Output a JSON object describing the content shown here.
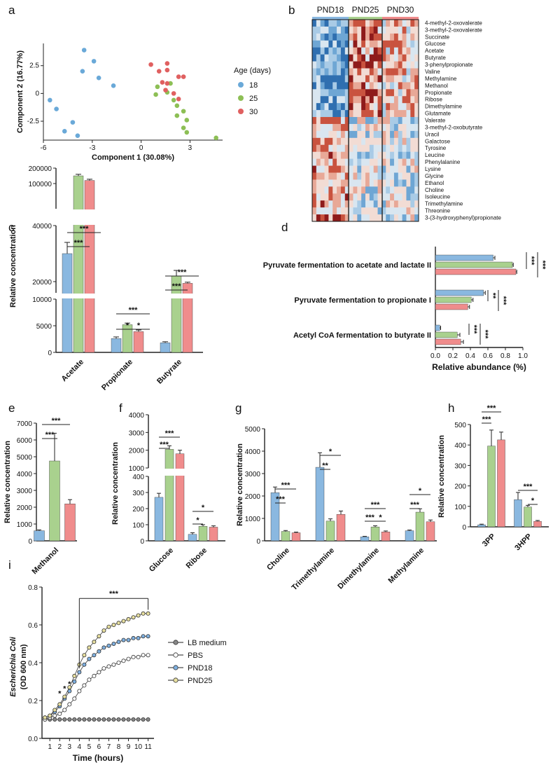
{
  "figure": {
    "colors": {
      "PND18": "#8ab8e0",
      "PND25": "#a9d18e",
      "PND30": "#f08c8c",
      "pca18": "#6aa9d8",
      "pca25": "#8dbf55",
      "pca30": "#e06060",
      "dark": "#222222"
    }
  },
  "chart_data": [
    {
      "panel": "a",
      "type": "scatter",
      "xlabel": "Component 1 (30.08%)",
      "ylabel": "Component 2 (16.77%)",
      "xlim": [
        -6,
        5
      ],
      "ylim": [
        -4.2,
        4.5
      ],
      "xticks": [
        -6,
        -3,
        0,
        3
      ],
      "yticks": [
        -2.5,
        0,
        2.5
      ],
      "legend_title": "Age (days)",
      "series": [
        {
          "name": "18",
          "color_key": "pca18",
          "points": [
            [
              -3.5,
              3.9
            ],
            [
              -2.9,
              2.9
            ],
            [
              -3.6,
              2.0
            ],
            [
              -2.6,
              1.4
            ],
            [
              -1.7,
              0.7
            ],
            [
              -5.6,
              -0.6
            ],
            [
              -5.2,
              -1.4
            ],
            [
              -4.2,
              -2.6
            ],
            [
              -4.7,
              -3.4
            ],
            [
              -3.9,
              -3.8
            ]
          ]
        },
        {
          "name": "25",
          "color_key": "pca25",
          "points": [
            [
              1.0,
              0.6
            ],
            [
              1.6,
              0.1
            ],
            [
              0.9,
              -0.1
            ],
            [
              2.0,
              -0.6
            ],
            [
              2.2,
              -1.1
            ],
            [
              2.6,
              -1.6
            ],
            [
              2.2,
              -2.0
            ],
            [
              2.8,
              -2.4
            ],
            [
              2.6,
              -3.1
            ],
            [
              2.8,
              -3.5
            ],
            [
              4.6,
              -4.0
            ],
            [
              1.8,
              0.9
            ]
          ]
        },
        {
          "name": "30",
          "color_key": "pca30",
          "points": [
            [
              0.6,
              2.6
            ],
            [
              1.6,
              2.7
            ],
            [
              1.6,
              2.1
            ],
            [
              1.1,
              2.0
            ],
            [
              2.3,
              1.5
            ],
            [
              2.6,
              1.5
            ],
            [
              1.3,
              1.0
            ],
            [
              1.6,
              0.9
            ],
            [
              1.5,
              0.3
            ],
            [
              2.0,
              0.0
            ],
            [
              2.3,
              -0.5
            ]
          ]
        }
      ]
    },
    {
      "panel": "b",
      "type": "heatmap",
      "columns": [
        "PND18",
        "PND25",
        "PND30"
      ],
      "rows": [
        "4-methyl-2-oxovalerate",
        "3-methyl-2-oxovalerate",
        "Succinate",
        "Glucose",
        "Acetate",
        "Butyrate",
        "3-phenylpropionate",
        "Valine",
        "Methylamine",
        "Methanol",
        "Propionate",
        "Ribose",
        "Dimethylamine",
        "Glutamate",
        "Valerate",
        "3-methyl-2-oxobutyrate",
        "Uracil",
        "Galactose",
        "Tyrosine",
        "Leucine",
        "Phenylalanine",
        "Lysine",
        "Glycine",
        "Ethanol",
        "Choline",
        "Isoleucine",
        "Trimethylamine",
        "Threonine",
        "3-(3-hydroxyphenyl)propionate"
      ]
    },
    {
      "panel": "c",
      "type": "bar",
      "ylabel": "Relative concentration",
      "categories": [
        "Acetate",
        "Propionate",
        "Butyrate"
      ],
      "series": [
        {
          "name": "PND18",
          "values": [
            30000,
            2600,
            1800
          ],
          "errors": [
            4000,
            300,
            200
          ]
        },
        {
          "name": "PND25",
          "values": [
            150000,
            5200,
            22000
          ],
          "errors": [
            10000,
            300,
            2000
          ]
        },
        {
          "name": "PND30",
          "values": [
            120000,
            3900,
            18500
          ],
          "errors": [
            8000,
            300,
            1000
          ]
        }
      ],
      "yticks": [
        0,
        5000,
        10000,
        20000,
        40000,
        100000,
        200000
      ],
      "significance": [
        "***",
        "***",
        "*",
        "***",
        "*",
        "***",
        "***"
      ]
    },
    {
      "panel": "d",
      "type": "bar",
      "orientation": "horizontal",
      "xlabel": "Relative abundance (%)",
      "categories": [
        "Pyruvate fermentation to acetate and lactate II",
        "Pyruvate fermentation to propionate I",
        "Acetyl CoA fermentation to butyrate II"
      ],
      "series": [
        {
          "name": "PND18",
          "values": [
            0.66,
            0.55,
            0.05
          ],
          "errors": [
            0.02,
            0.02,
            0.01
          ]
        },
        {
          "name": "PND25",
          "values": [
            0.88,
            0.41,
            0.25
          ],
          "errors": [
            0.01,
            0.02,
            0.03
          ]
        },
        {
          "name": "PND30",
          "values": [
            0.92,
            0.37,
            0.29
          ],
          "errors": [
            0.01,
            0.02,
            0.03
          ]
        }
      ],
      "xlim": [
        0,
        1.0
      ],
      "xticks": [
        "0.0",
        "0.2",
        "0.4",
        "0.6",
        "0.8",
        "1.0"
      ],
      "significance": [
        "***",
        "***",
        "**",
        "***",
        "***",
        "***"
      ]
    },
    {
      "panel": "e",
      "type": "bar",
      "ylabel": "Relative concentration",
      "categories": [
        "Methanol"
      ],
      "series": [
        {
          "name": "PND18",
          "values": [
            600
          ],
          "errors": [
            50
          ]
        },
        {
          "name": "PND25",
          "values": [
            4750
          ],
          "errors": [
            1650
          ]
        },
        {
          "name": "PND30",
          "values": [
            2200
          ],
          "errors": [
            250
          ]
        }
      ],
      "ylim": [
        0,
        7000
      ],
      "yticks": [
        0,
        1000,
        2000,
        3000,
        4000,
        5000,
        6000,
        7000
      ],
      "significance": [
        "***",
        "***"
      ]
    },
    {
      "panel": "f",
      "type": "bar",
      "ylabel": "Relative concentration",
      "categories": [
        "Glucose",
        "Ribose"
      ],
      "series": [
        {
          "name": "PND18",
          "values": [
            270,
            40
          ],
          "errors": [
            25,
            10
          ]
        },
        {
          "name": "PND25",
          "values": [
            2050,
            90
          ],
          "errors": [
            200,
            10
          ]
        },
        {
          "name": "PND30",
          "values": [
            1800,
            85
          ],
          "errors": [
            200,
            8
          ]
        }
      ],
      "yticks": [
        0,
        100,
        200,
        300,
        400,
        1000,
        2000,
        3000,
        4000
      ],
      "significance": [
        "***",
        "***",
        "*",
        "*"
      ]
    },
    {
      "panel": "g",
      "type": "bar",
      "ylabel": "Relative concentration",
      "categories": [
        "Choline",
        "Trimethylamine",
        "Dimethylamine",
        "Methylamine"
      ],
      "series": [
        {
          "name": "PND18",
          "values": [
            2150,
            3280,
            180,
            450
          ],
          "errors": [
            250,
            650,
            20,
            30
          ]
        },
        {
          "name": "PND25",
          "values": [
            420,
            880,
            620,
            1280
          ],
          "errors": [
            40,
            100,
            50,
            150
          ]
        },
        {
          "name": "PND30",
          "values": [
            360,
            1180,
            400,
            850
          ],
          "errors": [
            30,
            150,
            40,
            80
          ]
        }
      ],
      "ylim": [
        0,
        5000
      ],
      "yticks": [
        0,
        1000,
        2000,
        3000,
        4000,
        5000
      ],
      "significance": [
        "***",
        "***",
        "**",
        "*",
        "***",
        "***",
        "*",
        "***",
        "*"
      ]
    },
    {
      "panel": "h",
      "type": "bar",
      "ylabel": "Relative concentration",
      "categories": [
        "3PP",
        "3HPP"
      ],
      "series": [
        {
          "name": "PND18",
          "values": [
            10,
            133
          ],
          "errors": [
            3,
            35
          ]
        },
        {
          "name": "PND25",
          "values": [
            395,
            97
          ],
          "errors": [
            78,
            8
          ]
        },
        {
          "name": "PND30",
          "values": [
            425,
            27
          ],
          "errors": [
            38,
            4
          ]
        }
      ],
      "ylim": [
        0,
        500
      ],
      "yticks": [
        0,
        100,
        200,
        300,
        400,
        500
      ],
      "significance": [
        "***",
        "***",
        "***",
        "*"
      ]
    },
    {
      "panel": "i",
      "type": "line",
      "ylabel": "Escherichia Coli",
      "ylabel2": "(OD 600 nm)",
      "xlabel": "Time (hours)",
      "xlim": [
        0.2,
        11.6
      ],
      "ylim": [
        0,
        0.8
      ],
      "xticks": [
        1,
        2,
        3,
        4,
        5,
        6,
        7,
        8,
        9,
        10,
        11
      ],
      "yticks": [
        "0.0",
        "0.2",
        "0.4",
        "0.6",
        "0.8"
      ],
      "x": [
        0.5,
        1,
        1.5,
        2,
        2.5,
        3,
        3.5,
        4,
        4.5,
        5,
        5.5,
        6,
        6.5,
        7,
        7.5,
        8,
        8.5,
        9,
        9.5,
        10,
        10.5,
        11
      ],
      "series": [
        {
          "name": "LB medium",
          "fill": "#888888",
          "values": [
            0.1,
            0.1,
            0.1,
            0.1,
            0.1,
            0.1,
            0.1,
            0.1,
            0.1,
            0.1,
            0.1,
            0.1,
            0.1,
            0.1,
            0.1,
            0.1,
            0.1,
            0.1,
            0.1,
            0.1,
            0.1,
            0.1
          ]
        },
        {
          "name": "PBS",
          "fill": "#ffffff",
          "values": [
            0.1,
            0.11,
            0.12,
            0.13,
            0.15,
            0.18,
            0.21,
            0.25,
            0.28,
            0.31,
            0.33,
            0.35,
            0.37,
            0.38,
            0.39,
            0.4,
            0.41,
            0.42,
            0.43,
            0.43,
            0.44,
            0.44
          ]
        },
        {
          "name": "PND18",
          "fill": "#7fb0e0",
          "values": [
            0.11,
            0.12,
            0.14,
            0.17,
            0.21,
            0.25,
            0.3,
            0.35,
            0.39,
            0.42,
            0.44,
            0.46,
            0.48,
            0.49,
            0.5,
            0.51,
            0.52,
            0.52,
            0.53,
            0.53,
            0.54,
            0.54
          ]
        },
        {
          "name": "PND25",
          "fill": "#e8e0a0",
          "values": [
            0.11,
            0.12,
            0.15,
            0.18,
            0.22,
            0.27,
            0.33,
            0.39,
            0.44,
            0.48,
            0.51,
            0.54,
            0.57,
            0.59,
            0.6,
            0.61,
            0.62,
            0.63,
            0.64,
            0.65,
            0.66,
            0.66
          ]
        }
      ],
      "significance": [
        "***",
        "*",
        "*",
        "*"
      ]
    }
  ]
}
